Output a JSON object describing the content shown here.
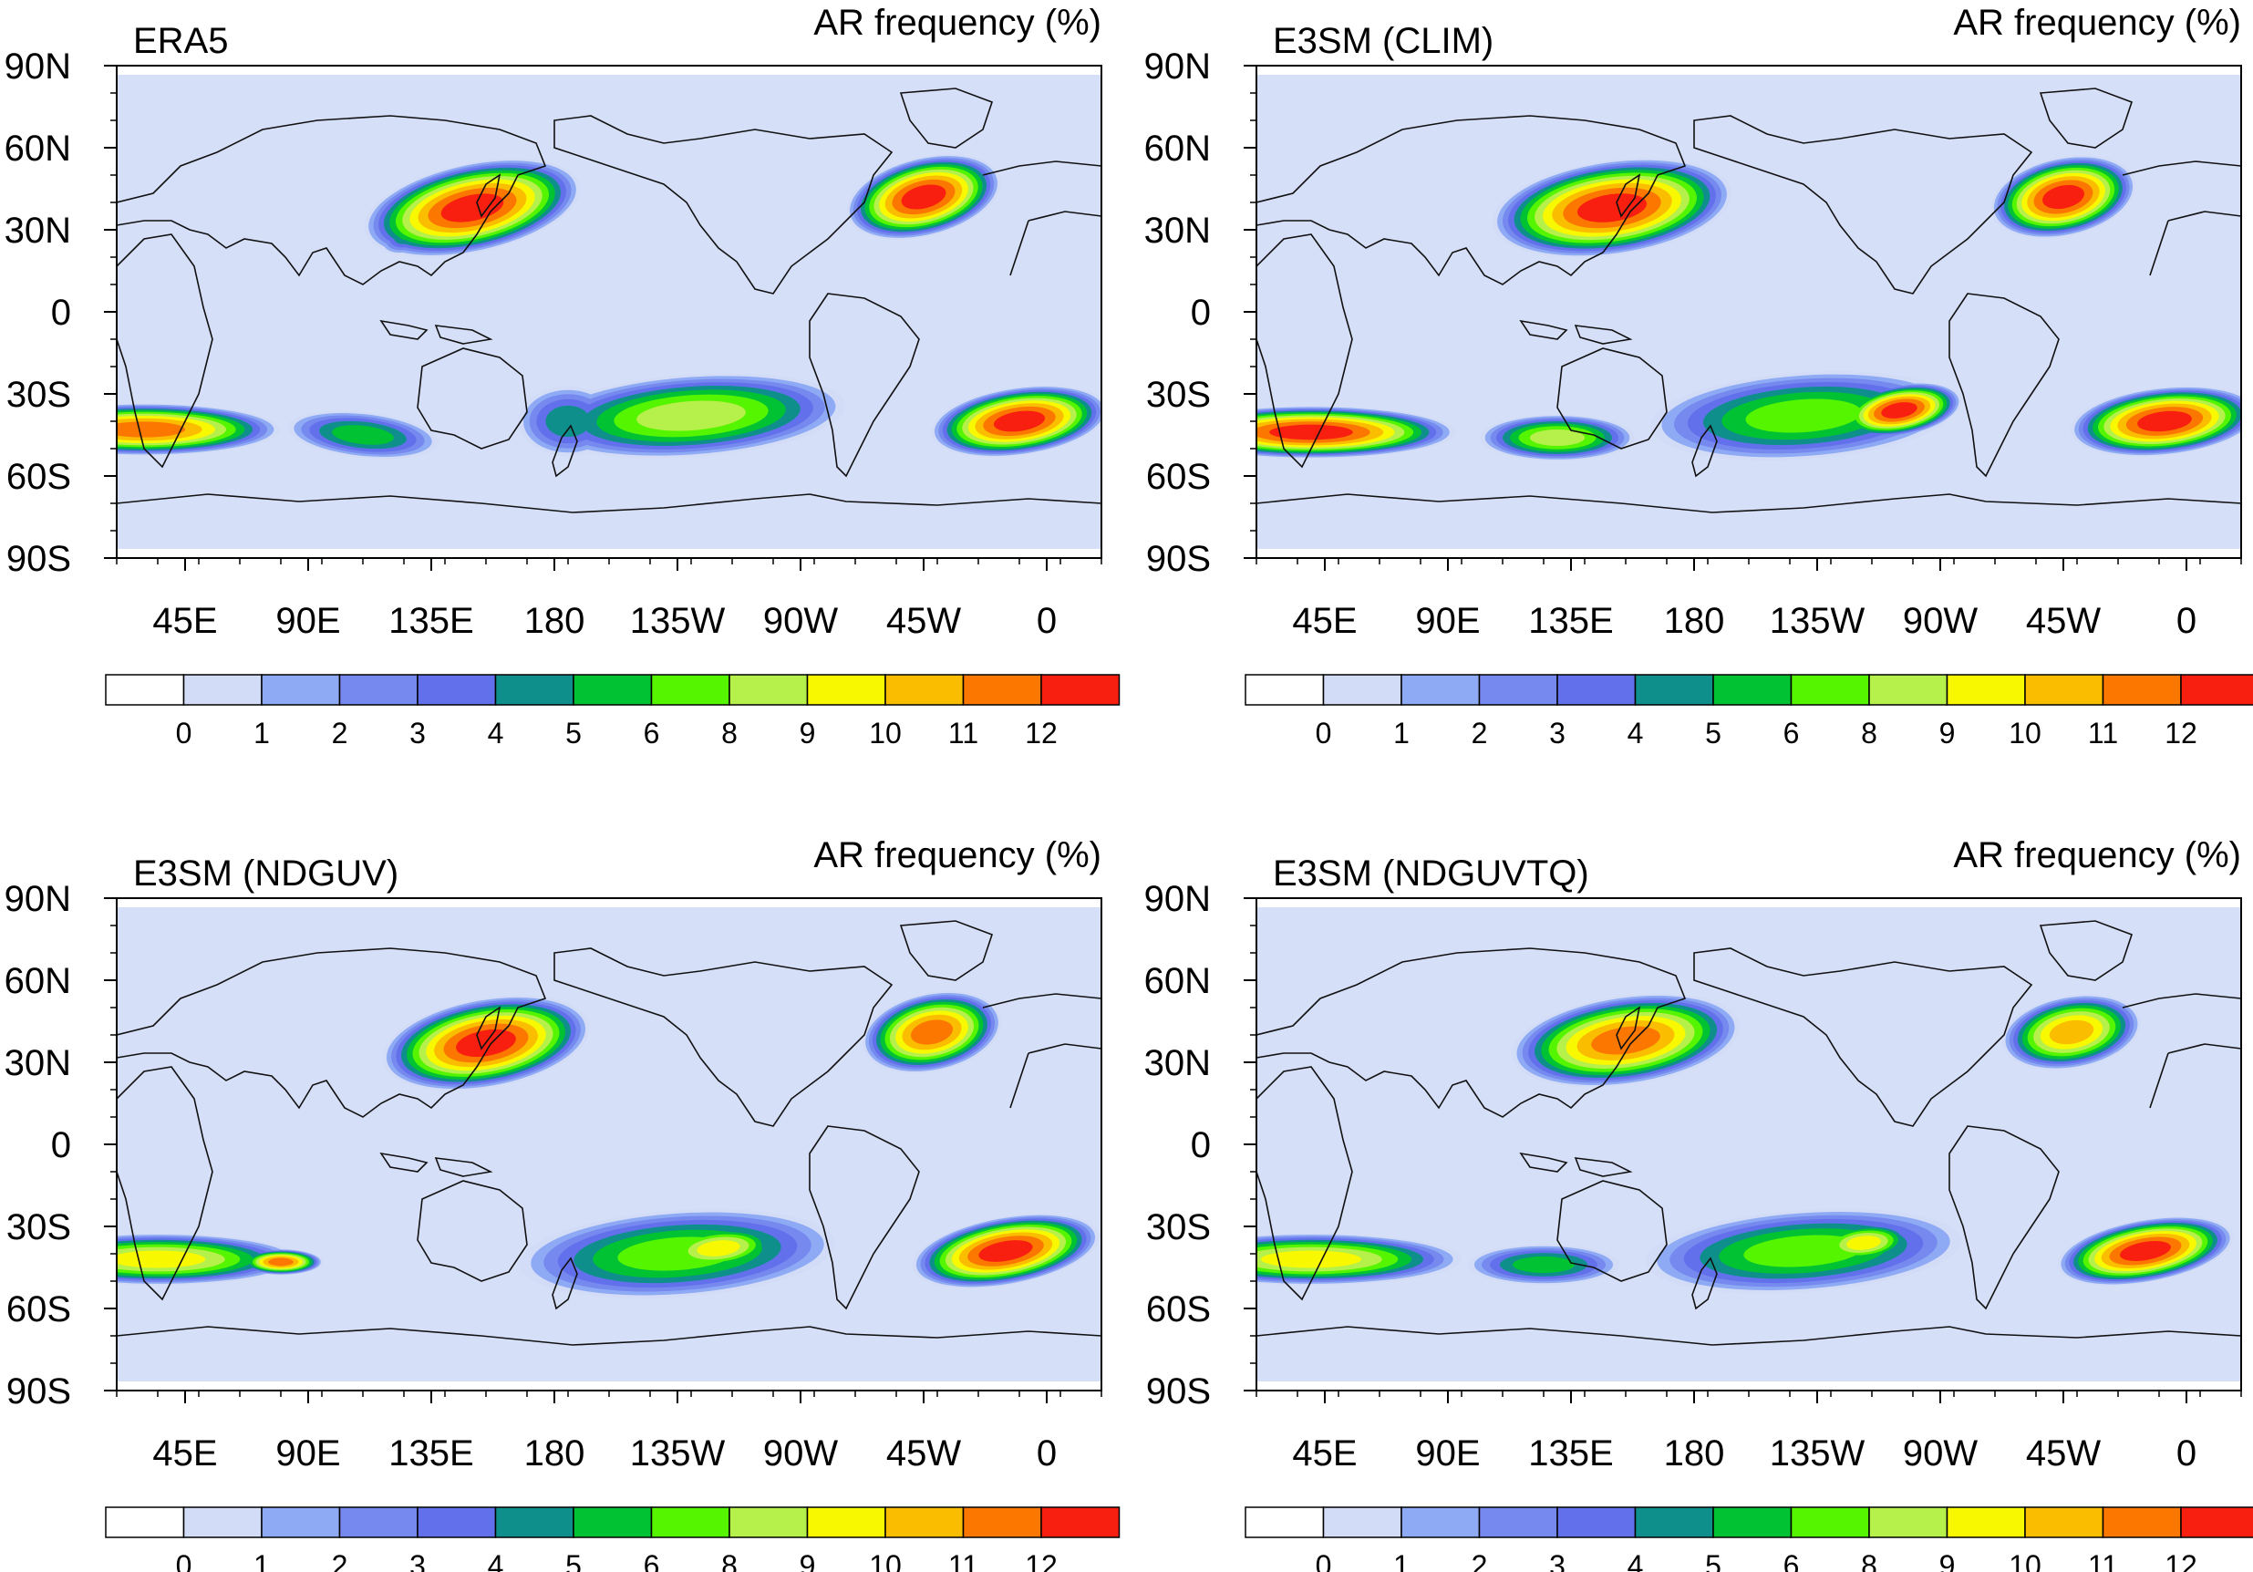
{
  "palette": {
    "ocean_bg": "#d5dff7",
    "colors": [
      "#ffffff",
      "#d3dcf6",
      "#8faaf5",
      "#7589ef",
      "#6370ec",
      "#0e8f8c",
      "#00c233",
      "#55f500",
      "#b6f04a",
      "#f8f800",
      "#fbbd00",
      "#fb7700",
      "#f91f10"
    ],
    "coast": "#111111"
  },
  "colorbar": {
    "labels": [
      "0",
      "1",
      "2",
      "3",
      "4",
      "5",
      "6",
      "8",
      "9",
      "10",
      "11",
      "12"
    ]
  },
  "axes": {
    "lat_labels": [
      "90N",
      "60N",
      "30N",
      "0",
      "30S",
      "60S",
      "90S"
    ],
    "lon_labels": [
      "45E",
      "90E",
      "135E",
      "180",
      "135W",
      "90W",
      "45W",
      "0"
    ]
  },
  "panels": [
    {
      "id": "era5",
      "title": "ERA5",
      "right_title": "AR frequency (%)"
    },
    {
      "id": "clim",
      "title": "E3SM (CLIM)",
      "right_title": "AR frequency (%)"
    },
    {
      "id": "ndguv",
      "title": "E3SM (NDGUV)",
      "right_title": "AR frequency (%)"
    },
    {
      "id": "ndguvtq",
      "title": "E3SM (NDGUVTQ)",
      "right_title": "AR frequency (%)"
    }
  ],
  "fields": {
    "era5": [
      {
        "lon": 150,
        "lat": 38,
        "rx": 42,
        "ry": 17,
        "rot": -12,
        "peak": 13
      },
      {
        "lon": 128,
        "lat": 30,
        "rx": 14,
        "ry": 8,
        "rot": -30,
        "peak": 7
      },
      {
        "lon": -45,
        "lat": 42,
        "rx": 30,
        "ry": 15,
        "rot": -14,
        "peak": 13
      },
      {
        "lon": 30,
        "lat": -43,
        "rx": 52,
        "ry": 10,
        "rot": 0,
        "peak": 12
      },
      {
        "lon": 110,
        "lat": -45,
        "rx": 30,
        "ry": 9,
        "rot": 6,
        "peak": 7
      },
      {
        "lon": -130,
        "lat": -38,
        "rx": 60,
        "ry": 16,
        "rot": -4,
        "peak": 9
      },
      {
        "lon": -175,
        "lat": -40,
        "rx": 20,
        "ry": 14,
        "rot": 0,
        "peak": 6
      },
      {
        "lon": -10,
        "lat": -40,
        "rx": 34,
        "ry": 13,
        "rot": -8,
        "peak": 13
      }
    ],
    "clim": [
      {
        "lon": 150,
        "lat": 38,
        "rx": 46,
        "ry": 18,
        "rot": -8,
        "peak": 13
      },
      {
        "lon": -45,
        "lat": 42,
        "rx": 28,
        "ry": 15,
        "rot": -12,
        "peak": 13
      },
      {
        "lon": 40,
        "lat": -44,
        "rx": 55,
        "ry": 10,
        "rot": 0,
        "peak": 13
      },
      {
        "lon": 130,
        "lat": -46,
        "rx": 30,
        "ry": 9,
        "rot": 0,
        "peak": 9
      },
      {
        "lon": -140,
        "lat": -38,
        "rx": 60,
        "ry": 17,
        "rot": -4,
        "peak": 8
      },
      {
        "lon": -105,
        "lat": -36,
        "rx": 24,
        "ry": 10,
        "rot": -10,
        "peak": 13
      },
      {
        "lon": -8,
        "lat": -40,
        "rx": 36,
        "ry": 13,
        "rot": -6,
        "peak": 13
      }
    ],
    "ndguv": [
      {
        "lon": 155,
        "lat": 37,
        "rx": 40,
        "ry": 17,
        "rot": -10,
        "peak": 13
      },
      {
        "lon": -42,
        "lat": 41,
        "rx": 27,
        "ry": 15,
        "rot": -12,
        "peak": 12
      },
      {
        "lon": 35,
        "lat": -42,
        "rx": 55,
        "ry": 10,
        "rot": 0,
        "peak": 10
      },
      {
        "lon": 80,
        "lat": -43,
        "rx": 16,
        "ry": 5,
        "rot": 0,
        "peak": 12
      },
      {
        "lon": -135,
        "lat": -40,
        "rx": 62,
        "ry": 17,
        "rot": -4,
        "peak": 8
      },
      {
        "lon": -120,
        "lat": -38,
        "rx": 25,
        "ry": 9,
        "rot": -6,
        "peak": 10
      },
      {
        "lon": -15,
        "lat": -39,
        "rx": 36,
        "ry": 13,
        "rot": -10,
        "peak": 13
      }
    ],
    "ndguvtq": [
      {
        "lon": 155,
        "lat": 38,
        "rx": 44,
        "ry": 17,
        "rot": -8,
        "peak": 12
      },
      {
        "lon": -42,
        "lat": 41,
        "rx": 27,
        "ry": 14,
        "rot": -10,
        "peak": 11
      },
      {
        "lon": 40,
        "lat": -42,
        "rx": 58,
        "ry": 10,
        "rot": 0,
        "peak": 10
      },
      {
        "lon": 125,
        "lat": -44,
        "rx": 30,
        "ry": 8,
        "rot": 0,
        "peak": 7
      },
      {
        "lon": -140,
        "lat": -39,
        "rx": 62,
        "ry": 16,
        "rot": -4,
        "peak": 8
      },
      {
        "lon": -118,
        "lat": -36,
        "rx": 20,
        "ry": 8,
        "rot": -6,
        "peak": 10
      },
      {
        "lon": -15,
        "lat": -39,
        "rx": 34,
        "ry": 12,
        "rot": -10,
        "peak": 13
      }
    ]
  }
}
